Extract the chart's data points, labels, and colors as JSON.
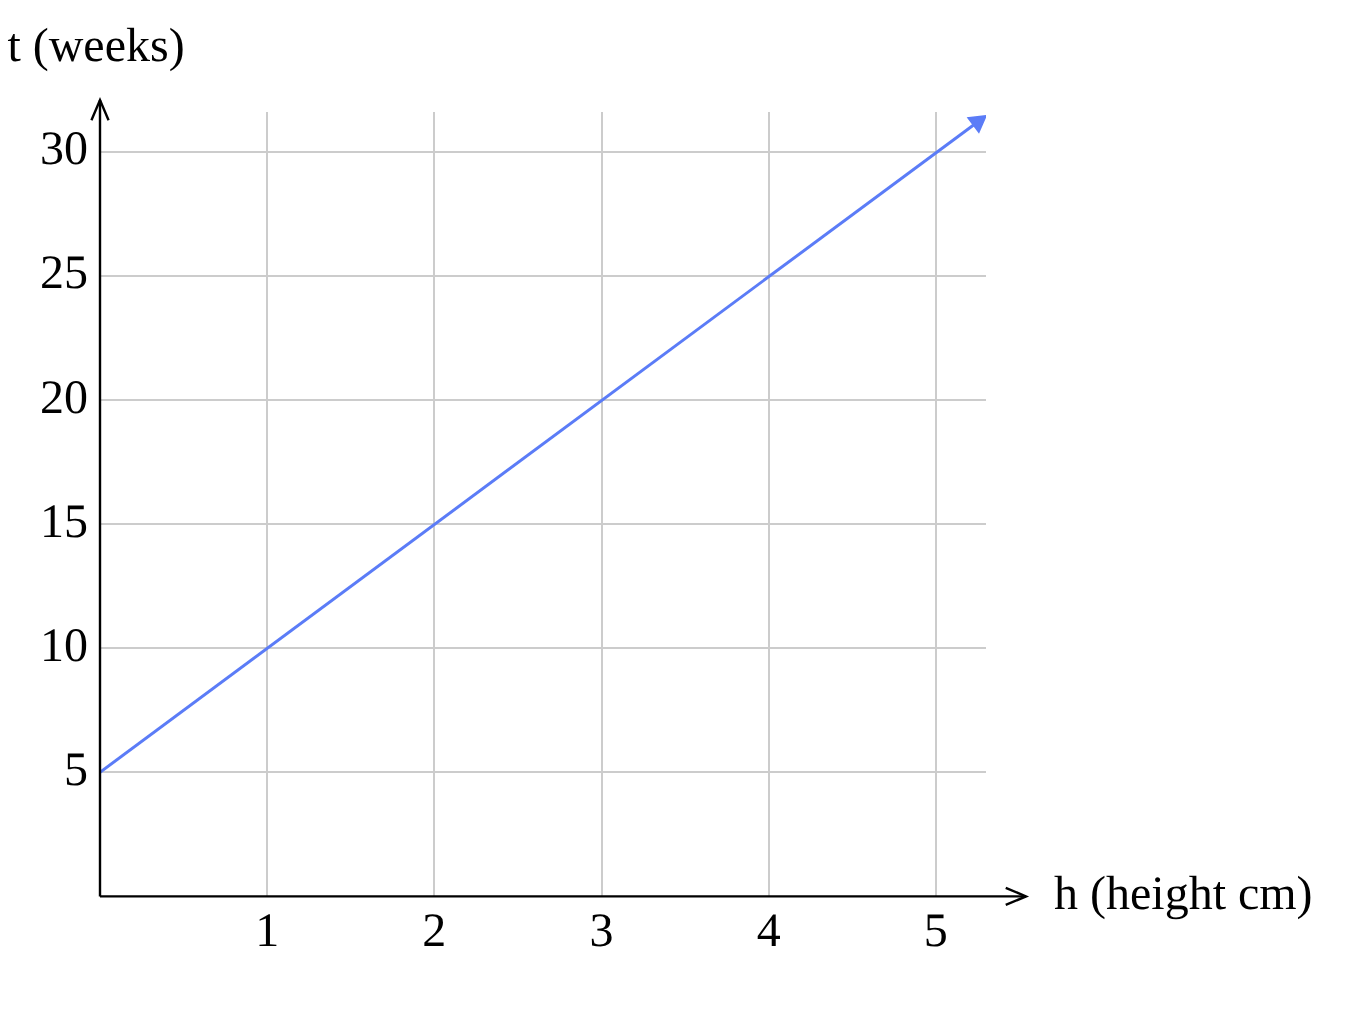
{
  "chart_data": {
    "type": "line",
    "xlabel": "h (height cm)",
    "ylabel": "t (weeks)",
    "x": [
      0,
      5.25
    ],
    "series": [
      {
        "color": "#5b7cf7",
        "values": [
          5,
          31.2
        ]
      }
    ],
    "xlim": [
      0,
      5.3
    ],
    "ylim": [
      0,
      31.6
    ],
    "xticks": [
      1,
      2,
      3,
      4,
      5
    ],
    "yticks": [
      5,
      10,
      15,
      20,
      25,
      30
    ],
    "grid": true,
    "legend": false,
    "line_style": "solid"
  }
}
